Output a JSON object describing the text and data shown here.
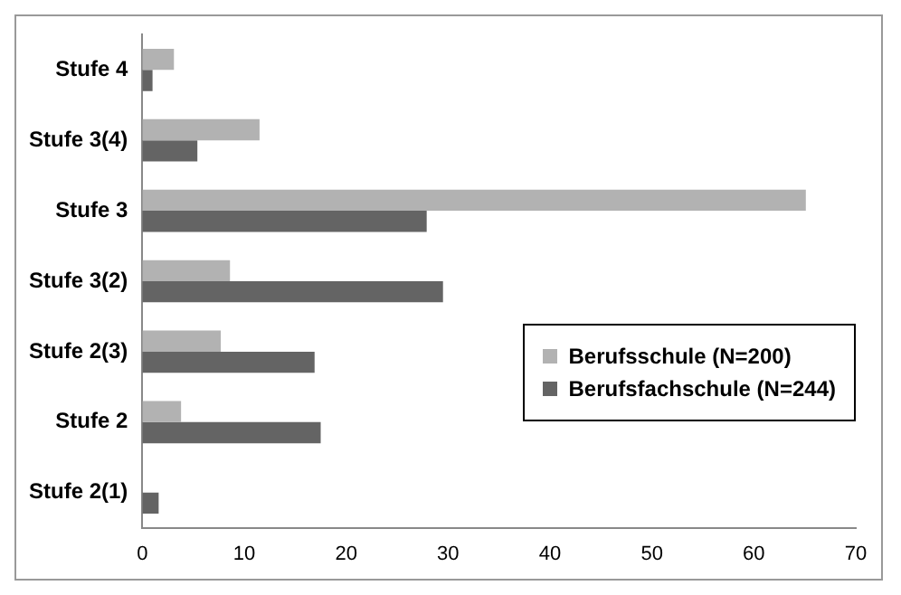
{
  "chart_data": {
    "type": "bar",
    "orientation": "horizontal",
    "categories": [
      "Stufe 4",
      "Stufe 3(4)",
      "Stufe 3",
      "Stufe 3(2)",
      "Stufe 2(3)",
      "Stufe 2",
      "Stufe 2(1)"
    ],
    "series": [
      {
        "name": "Berufsschule (N=200)",
        "color": "#b2b2b2",
        "values": [
          3.1,
          11.5,
          65.1,
          8.6,
          7.7,
          3.8,
          0
        ]
      },
      {
        "name": "Berufsfachschule (N=244)",
        "color": "#646464",
        "values": [
          1.0,
          5.4,
          27.9,
          29.5,
          16.9,
          17.5,
          1.6
        ]
      }
    ],
    "xlim": [
      0,
      70
    ],
    "xticks": [
      0,
      10,
      20,
      30,
      40,
      50,
      60,
      70
    ],
    "grid": false,
    "legend": "right"
  }
}
